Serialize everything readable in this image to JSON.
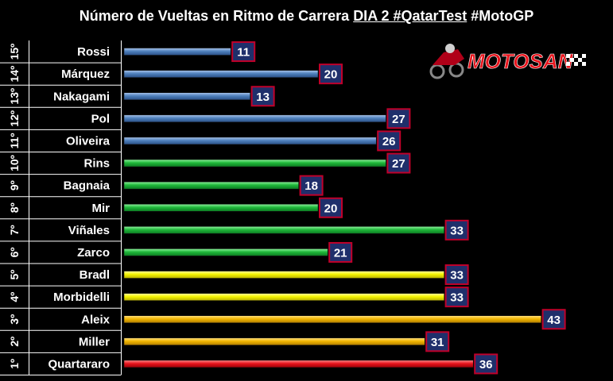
{
  "title": {
    "prefix": "Número de Vueltas en Ritmo de Carrera ",
    "underlined": "DIA 2 #QatarTest",
    "suffix": " #MotoGP"
  },
  "logo": {
    "text": "MOTOSAN"
  },
  "colors": {
    "blue": "#4f81bd",
    "green": "#1fb83a",
    "yellow": "#f5f500",
    "orange": "#f2b600",
    "red": "#e8141c",
    "label_box": "#1f2f6b",
    "label_border": "#c0002a"
  },
  "chart_data": {
    "type": "bar",
    "orientation": "horizontal",
    "title": "Número de Vueltas en Ritmo de Carrera DIA 2 #QatarTest #MotoGP",
    "rows": [
      {
        "position": "15º",
        "rider": "Rossi",
        "value": 11,
        "color": "blue"
      },
      {
        "position": "14º",
        "rider": "Márquez",
        "value": 20,
        "color": "blue"
      },
      {
        "position": "13º",
        "rider": "Nakagami",
        "value": 13,
        "color": "blue"
      },
      {
        "position": "12º",
        "rider": "Pol",
        "value": 27,
        "color": "blue"
      },
      {
        "position": "11º",
        "rider": "Oliveira",
        "value": 26,
        "color": "blue"
      },
      {
        "position": "10º",
        "rider": "Rins",
        "value": 27,
        "color": "green"
      },
      {
        "position": "9º",
        "rider": "Bagnaia",
        "value": 18,
        "color": "green"
      },
      {
        "position": "8º",
        "rider": "Mir",
        "value": 20,
        "color": "green"
      },
      {
        "position": "7º",
        "rider": "Viñales",
        "value": 33,
        "color": "green"
      },
      {
        "position": "6º",
        "rider": "Zarco",
        "value": 21,
        "color": "green"
      },
      {
        "position": "5º",
        "rider": "Bradl",
        "value": 33,
        "color": "yellow"
      },
      {
        "position": "4º",
        "rider": "Morbidelli",
        "value": 33,
        "color": "yellow"
      },
      {
        "position": "3º",
        "rider": "Aleix",
        "value": 43,
        "color": "orange"
      },
      {
        "position": "2º",
        "rider": "Miller",
        "value": 31,
        "color": "orange"
      },
      {
        "position": "1º",
        "rider": "Quartararo",
        "value": 36,
        "color": "red"
      }
    ],
    "xlim": [
      0,
      43
    ],
    "grid": false,
    "legend": "none"
  }
}
